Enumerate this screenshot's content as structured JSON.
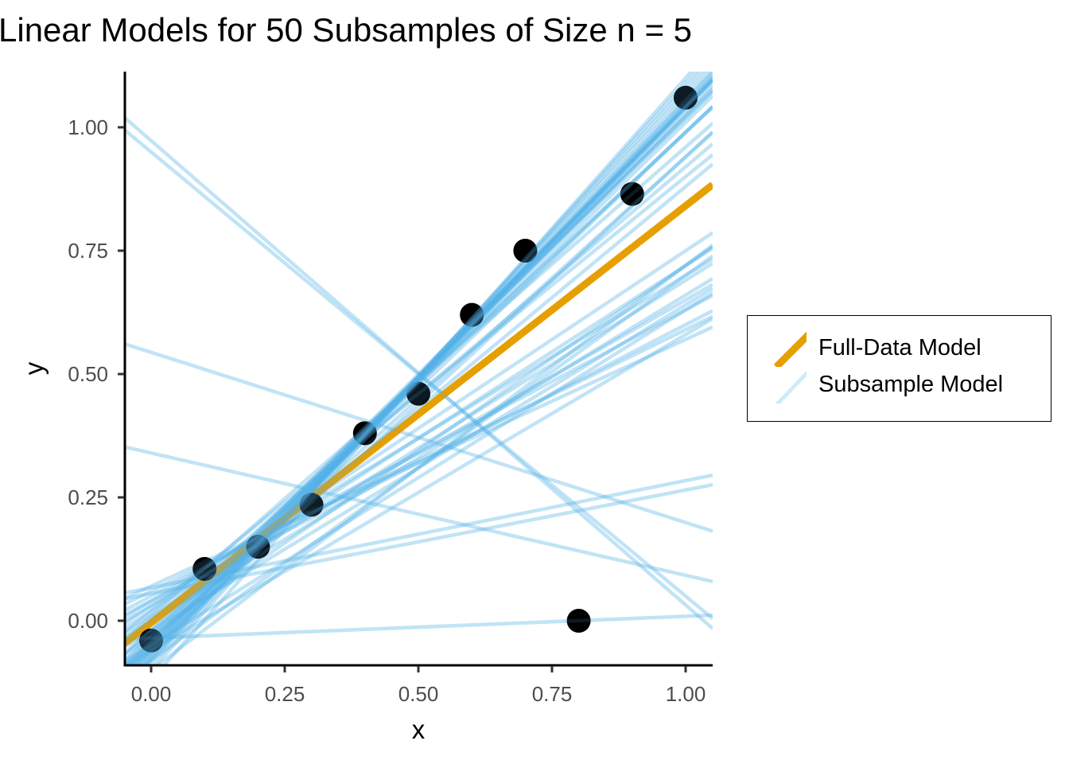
{
  "chart_data": {
    "type": "line",
    "title": "Linear Models for 50 Subsamples of Size n = 5",
    "xlabel": "x",
    "ylabel": "y",
    "xlim": [
      -0.05,
      1.05
    ],
    "ylim": [
      -0.09,
      1.11
    ],
    "x_ticks": [
      0.0,
      0.25,
      0.5,
      0.75,
      1.0
    ],
    "x_tick_labels": [
      "0.00",
      "0.25",
      "0.50",
      "0.75",
      "1.00"
    ],
    "y_ticks": [
      0.0,
      0.25,
      0.5,
      0.75,
      1.0
    ],
    "y_tick_labels": [
      "0.00",
      "0.25",
      "0.50",
      "0.75",
      "1.00"
    ],
    "grid": false,
    "legend_position": "right",
    "legend": [
      {
        "label": "Full-Data Model",
        "color": "#E69F00"
      },
      {
        "label": "Subsample Model",
        "color": "#56B4E9"
      }
    ],
    "points": {
      "name": "Observed data",
      "color": "#000000",
      "x": [
        0.0,
        0.1,
        0.2,
        0.3,
        0.4,
        0.5,
        0.6,
        0.7,
        0.8,
        0.9,
        1.0
      ],
      "y": [
        -0.04,
        0.105,
        0.15,
        0.235,
        0.38,
        0.46,
        0.62,
        0.75,
        0.0,
        0.865,
        1.06
      ]
    },
    "full_model": {
      "name": "Full-Data Model",
      "intercept": -0.004,
      "slope": 0.845,
      "color": "#E69F00"
    },
    "subsample_models": {
      "name": "Subsample Model",
      "color": "#56B4E9",
      "count": 50,
      "lines": [
        {
          "intercept": 0.973,
          "slope": -0.941
        },
        {
          "intercept": 0.95,
          "slope": -0.9
        },
        {
          "intercept": 0.544,
          "slope": -0.345
        },
        {
          "intercept": 0.34,
          "slope": -0.248
        },
        {
          "intercept": 0.067,
          "slope": 0.217
        },
        {
          "intercept": 0.055,
          "slope": 0.21
        },
        {
          "intercept": -0.035,
          "slope": 0.044
        },
        {
          "intercept": -0.06,
          "slope": 1.1
        },
        {
          "intercept": -0.05,
          "slope": 1.09
        },
        {
          "intercept": -0.07,
          "slope": 1.12
        },
        {
          "intercept": -0.04,
          "slope": 1.08
        },
        {
          "intercept": -0.065,
          "slope": 1.11
        },
        {
          "intercept": -0.055,
          "slope": 1.1
        },
        {
          "intercept": -0.045,
          "slope": 1.07
        },
        {
          "intercept": -0.08,
          "slope": 1.14
        },
        {
          "intercept": -0.075,
          "slope": 1.13
        },
        {
          "intercept": -0.05,
          "slope": 1.06
        },
        {
          "intercept": -0.03,
          "slope": 1.05
        },
        {
          "intercept": -0.06,
          "slope": 1.09
        },
        {
          "intercept": -0.07,
          "slope": 1.11
        },
        {
          "intercept": -0.04,
          "slope": 1.06
        },
        {
          "intercept": -0.09,
          "slope": 1.17
        },
        {
          "intercept": -0.1,
          "slope": 1.19
        },
        {
          "intercept": -0.05,
          "slope": 1.04
        },
        {
          "intercept": -0.02,
          "slope": 1.01
        },
        {
          "intercept": -0.03,
          "slope": 1.02
        },
        {
          "intercept": -0.06,
          "slope": 1.0
        },
        {
          "intercept": -0.04,
          "slope": 0.98
        },
        {
          "intercept": -0.12,
          "slope": 1.22
        },
        {
          "intercept": -0.08,
          "slope": 1.15
        },
        {
          "intercept": 0.01,
          "slope": 0.95
        },
        {
          "intercept": 0.0,
          "slope": 0.92
        },
        {
          "intercept": -0.02,
          "slope": 0.9
        },
        {
          "intercept": 0.02,
          "slope": 0.88
        },
        {
          "intercept": 0.03,
          "slope": 0.72
        },
        {
          "intercept": 0.02,
          "slope": 0.7
        },
        {
          "intercept": 0.01,
          "slope": 0.68
        },
        {
          "intercept": 0.04,
          "slope": 0.66
        },
        {
          "intercept": 0.0,
          "slope": 0.66
        },
        {
          "intercept": -0.02,
          "slope": 0.66
        },
        {
          "intercept": 0.03,
          "slope": 0.62
        },
        {
          "intercept": 0.05,
          "slope": 0.58
        },
        {
          "intercept": 0.04,
          "slope": 0.56
        },
        {
          "intercept": 0.06,
          "slope": 0.53
        },
        {
          "intercept": 0.07,
          "slope": 0.5
        },
        {
          "intercept": -0.05,
          "slope": 0.68
        },
        {
          "intercept": -0.03,
          "slope": 0.75
        },
        {
          "intercept": -0.08,
          "slope": 0.78
        },
        {
          "intercept": -0.1,
          "slope": 0.82
        },
        {
          "intercept": -0.06,
          "slope": 0.64
        }
      ]
    }
  }
}
